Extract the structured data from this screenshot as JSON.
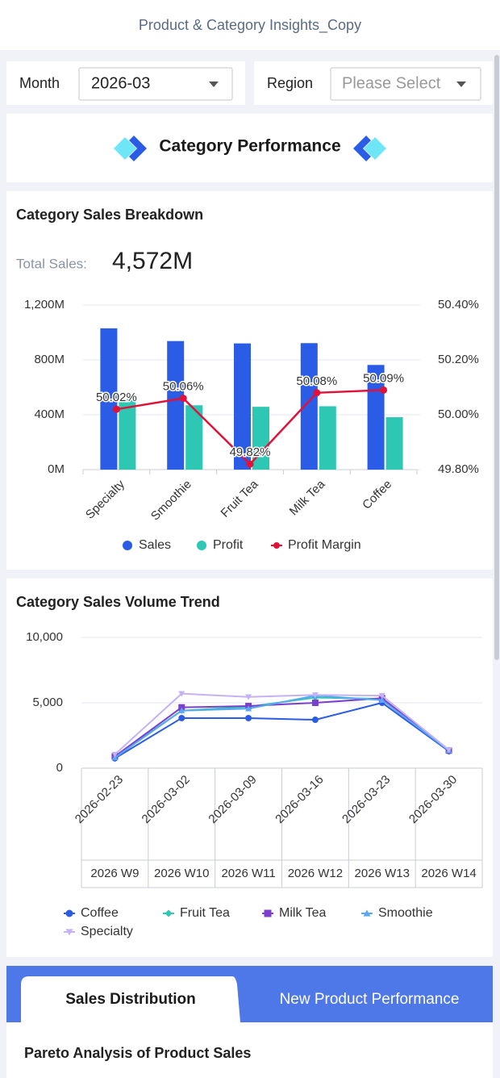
{
  "header": {
    "title": "Product & Category Insights_Copy"
  },
  "filters": [
    {
      "label": "Month",
      "value": "2026-03"
    },
    {
      "label": "Region",
      "placeholder": "Please Select"
    }
  ],
  "section": {
    "title": "Category Performance"
  },
  "chart_data": [
    {
      "type": "bar_line",
      "title": "Category Sales Breakdown",
      "summary": {
        "label": "Total Sales:",
        "value": "4,572M"
      },
      "categories": [
        "Specialty",
        "Smoothie",
        "Fruit Tea",
        "Milk Tea",
        "Coffee"
      ],
      "series": [
        {
          "name": "Sales",
          "color": "#2b5ce6",
          "values": [
            1030,
            937,
            920,
            922,
            763
          ]
        },
        {
          "name": "Profit",
          "color": "#2ec7b3",
          "values": [
            515,
            469,
            458,
            462,
            382
          ]
        },
        {
          "name": "Profit Margin",
          "color": "#e0123a",
          "type": "line",
          "axis": "y2",
          "values": [
            50.02,
            50.06,
            49.82,
            50.08,
            50.09
          ],
          "value_labels": [
            "50.02%",
            "50.06%",
            "49.82%",
            "50.08%",
            "50.09%"
          ]
        }
      ],
      "ylim": [
        0,
        1200
      ],
      "yticks": [
        {
          "value": 0,
          "label": "0M"
        },
        {
          "value": 400,
          "label": "400M"
        },
        {
          "value": 800,
          "label": "800M"
        },
        {
          "value": 1200,
          "label": "1,200M"
        }
      ],
      "y2lim": [
        49.8,
        50.4
      ],
      "y2ticks": [
        {
          "value": 49.8,
          "label": "49.80%"
        },
        {
          "value": 50.0,
          "label": "50.00%"
        },
        {
          "value": 50.2,
          "label": "50.20%"
        },
        {
          "value": 50.4,
          "label": "50.40%"
        }
      ],
      "grid": true
    },
    {
      "type": "line",
      "title": "Category Sales Volume Trend",
      "categories": [
        "2026-02-23",
        "2026-03-02",
        "2026-03-09",
        "2026-03-16",
        "2026-03-23",
        "2026-03-30"
      ],
      "category_groups": [
        "2026 W9",
        "2026 W10",
        "2026 W11",
        "2026 W12",
        "2026 W13",
        "2026 W14"
      ],
      "series": [
        {
          "name": "Coffee",
          "color": "#2b5ce6",
          "symbol": "circle",
          "values": [
            750,
            3830,
            3830,
            3700,
            5000,
            1300
          ]
        },
        {
          "name": "Fruit Tea",
          "color": "#2ec7b3",
          "symbol": "diamond",
          "values": [
            900,
            4400,
            4700,
            5400,
            5300,
            1400
          ]
        },
        {
          "name": "Milk Tea",
          "color": "#7b3fd0",
          "symbol": "square",
          "values": [
            900,
            4650,
            4750,
            5000,
            5350,
            1350
          ]
        },
        {
          "name": "Smoothie",
          "color": "#5aa8f0",
          "symbol": "triangle",
          "values": [
            800,
            4400,
            4550,
            5550,
            5200,
            1350
          ]
        },
        {
          "name": "Specialty",
          "color": "#c4b2f5",
          "symbol": "triangle-down",
          "values": [
            1050,
            5700,
            5450,
            5600,
            5550,
            1400
          ]
        }
      ],
      "ylim": [
        0,
        10000
      ],
      "yticks": [
        0,
        {
          "value": 5000,
          "label": "5,000"
        },
        {
          "value": 10000,
          "label": "10,000"
        }
      ],
      "grid": true
    }
  ],
  "tabs": [
    {
      "label": "Sales Distribution",
      "active": true
    },
    {
      "label": "New Product Performance",
      "active": false
    }
  ],
  "panel": {
    "title": "Pareto Analysis of Product Sales"
  }
}
